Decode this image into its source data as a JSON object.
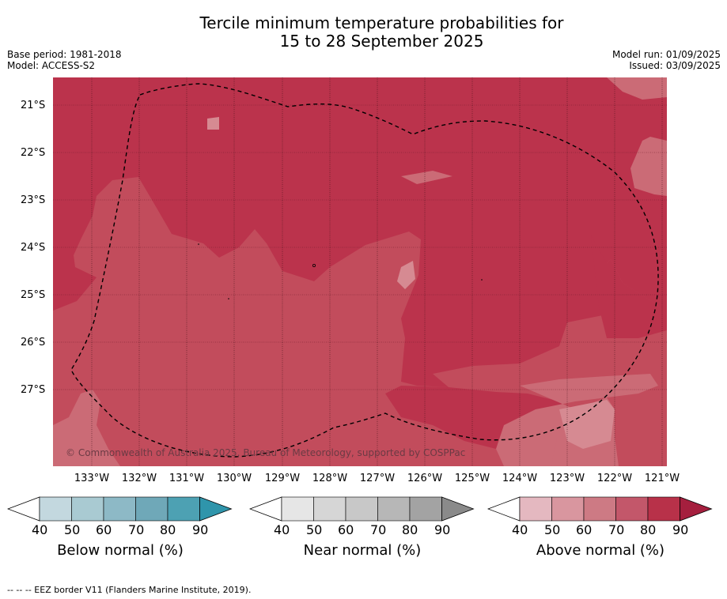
{
  "title_line1": "Tercile minimum temperature probabilities for",
  "title_line2": "15 to 28 September 2025",
  "base_period": "Base period: 1981-2018",
  "model": "Model: ACCESS-S2",
  "model_run": "Model run: 01/09/2025",
  "issued": "Issued: 03/09/2025",
  "copyright": "© Commonwealth of Australia 2025, Bureau of Meteorology, supported by COSPPac",
  "lat_labels": [
    "21°S",
    "22°S",
    "23°S",
    "24°S",
    "25°S",
    "26°S",
    "27°S"
  ],
  "lon_labels": [
    "133°W",
    "132°W",
    "131°W",
    "130°W",
    "129°W",
    "128°W",
    "127°W",
    "126°W",
    "125°W",
    "124°W",
    "123°W",
    "122°W",
    "121°W"
  ],
  "colorbars": [
    {
      "title": "Below normal (%)",
      "ticks": [
        "40",
        "50",
        "60",
        "70",
        "80",
        "90"
      ],
      "colors": [
        "#c3d8df",
        "#a9cad2",
        "#8db9c6",
        "#6fa8b8",
        "#4da1b3",
        "#2f95ab"
      ]
    },
    {
      "title": "Near normal (%)",
      "ticks": [
        "40",
        "50",
        "60",
        "70",
        "80",
        "90"
      ],
      "colors": [
        "#e6e6e6",
        "#d6d6d6",
        "#c8c8c8",
        "#b7b7b7",
        "#a3a3a3",
        "#8a8a8a"
      ]
    },
    {
      "title": "Above normal (%)",
      "ticks": [
        "40",
        "50",
        "60",
        "70",
        "80",
        "90"
      ],
      "colors": [
        "#e4b8c0",
        "#d9969f",
        "#cd7a84",
        "#c3576a",
        "#b83149",
        "#a51f3e"
      ]
    }
  ],
  "footer": "--  --  -- EEZ border V11 (Flanders Marine Institute, 2019).",
  "map_colors": {
    "p80": "#bb334c",
    "p70": "#c24c5c",
    "p60": "#cb6b76",
    "p50": "#d68a92"
  }
}
